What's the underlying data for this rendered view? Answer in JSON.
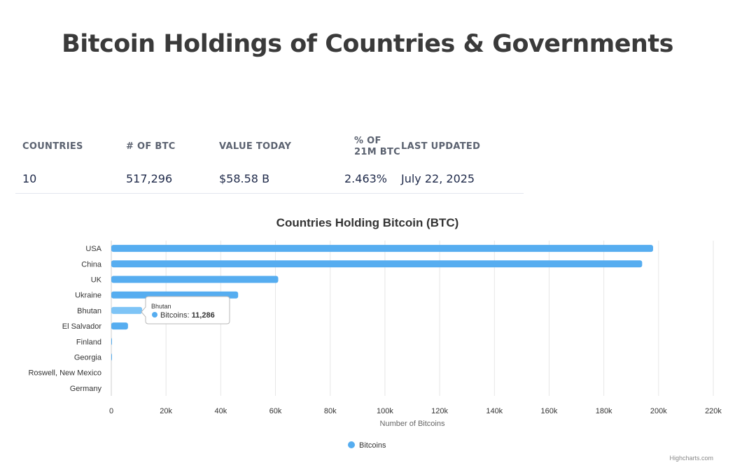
{
  "page": {
    "title": "Bitcoin Holdings of Countries & Governments"
  },
  "stats": {
    "countries_label": "COUNTRIES",
    "countries_value": "10",
    "btc_label": "# OF BTC",
    "btc_value": "517,296",
    "value_today_label": "VALUE TODAY",
    "value_today_value": "$58.58 B",
    "pct_label_line1": "% OF",
    "pct_label_line2": "21M BTC",
    "pct_value": "2.463%",
    "updated_label": "LAST UPDATED",
    "updated_value": "July 22, 2025"
  },
  "chart_data": {
    "type": "bar",
    "orientation": "horizontal",
    "title": "Countries Holding Bitcoin (BTC)",
    "xlabel": "Number of Bitcoins",
    "ylabel": "",
    "categories": [
      "USA",
      "China",
      "UK",
      "Ukraine",
      "Bhutan",
      "El Salvador",
      "Finland",
      "Georgia",
      "Roswell, New Mexico",
      "Germany"
    ],
    "series": [
      {
        "name": "Bitcoins",
        "color": "#56adf0",
        "values": [
          198000,
          194000,
          61000,
          46351,
          11286,
          6100,
          90,
          66,
          0,
          0
        ]
      }
    ],
    "xlim": [
      0,
      220000
    ],
    "xticks": [
      "0",
      "20k",
      "40k",
      "60k",
      "80k",
      "100k",
      "120k",
      "140k",
      "160k",
      "180k",
      "200k",
      "220k"
    ],
    "grid": true,
    "legend": "bottom-center",
    "highlight_color": "#7ec4f6",
    "tooltip": {
      "category": "Bhutan",
      "series": "Bitcoins",
      "value": "11,286"
    }
  },
  "credit": "Highcharts.com"
}
